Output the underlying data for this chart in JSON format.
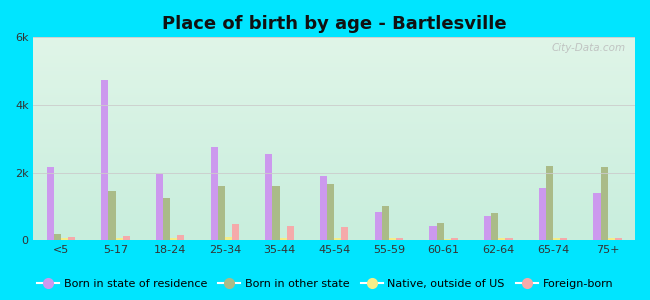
{
  "title": "Place of birth by age - Bartlesville",
  "categories": [
    "<5",
    "5-17",
    "18-24",
    "25-34",
    "35-44",
    "45-54",
    "55-59",
    "60-61",
    "62-64",
    "65-74",
    "75+"
  ],
  "series": {
    "Born in state of residence": [
      2150,
      4750,
      1950,
      2750,
      2550,
      1900,
      820,
      420,
      700,
      1550,
      1400
    ],
    "Born in other state": [
      180,
      1450,
      1250,
      1600,
      1600,
      1650,
      1000,
      500,
      800,
      2200,
      2150
    ],
    "Native, outside of US": [
      60,
      60,
      60,
      80,
      70,
      60,
      50,
      40,
      50,
      50,
      50
    ],
    "Foreign-born": [
      80,
      120,
      150,
      480,
      430,
      380,
      60,
      50,
      60,
      60,
      60
    ]
  },
  "colors": {
    "Born in state of residence": "#cc99ee",
    "Born in other state": "#aabb88",
    "Native, outside of US": "#f5ee88",
    "Foreign-born": "#f5aaaa"
  },
  "ylim": [
    0,
    6000
  ],
  "ytick_labels": [
    "0",
    "2k",
    "4k",
    "6k"
  ],
  "ytick_vals": [
    0,
    2000,
    4000,
    6000
  ],
  "outer_background": "#00e5ff",
  "bar_width": 0.13,
  "watermark": "City-Data.com",
  "title_fontsize": 13,
  "legend_fontsize": 8
}
